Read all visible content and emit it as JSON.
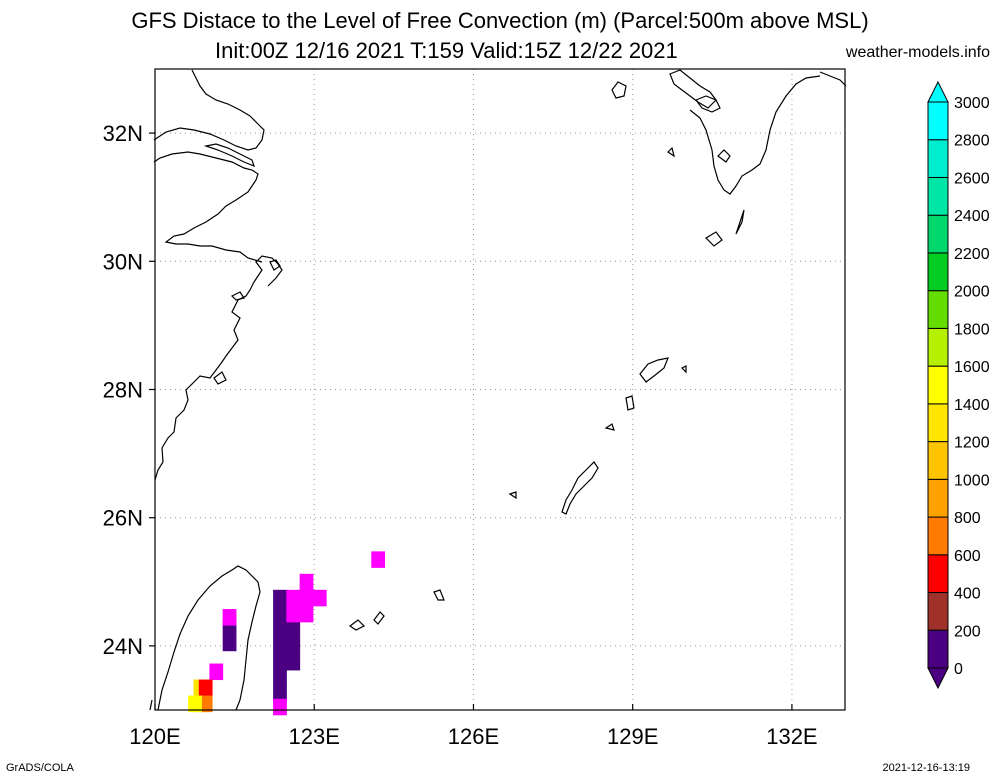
{
  "title": {
    "line1": "GFS Distace to the Level of Free Convection (m) (Parcel:500m above MSL)",
    "line2": "Init:00Z 12/16 2021 T:159 Valid:15Z 12/22 2021",
    "brand": "weather-models.info"
  },
  "footer": {
    "left": "GrADS/COLA",
    "right": "2021-12-16-13:19"
  },
  "map": {
    "lon_range": [
      120.0,
      133.0
    ],
    "lat_range": [
      23.0,
      33.0
    ],
    "lon_ticks": [
      {
        "value": 120,
        "label": "120E"
      },
      {
        "value": 123,
        "label": "123E"
      },
      {
        "value": 126,
        "label": "126E"
      },
      {
        "value": 129,
        "label": "129E"
      },
      {
        "value": 132,
        "label": "132E"
      }
    ],
    "lat_ticks": [
      {
        "value": 24,
        "label": "24N"
      },
      {
        "value": 26,
        "label": "26N"
      },
      {
        "value": 28,
        "label": "28N"
      },
      {
        "value": 30,
        "label": "30N"
      },
      {
        "value": 32,
        "label": "32N"
      }
    ],
    "grid": true
  },
  "colorbar": {
    "levels": [
      "0",
      "200",
      "400",
      "600",
      "800",
      "1000",
      "1200",
      "1400",
      "1600",
      "1800",
      "2000",
      "2200",
      "2400",
      "2600",
      "2800",
      "3000"
    ],
    "colors": [
      "#4b0082",
      "#ff00ff",
      "#a0302a",
      "#ff0000",
      "#ff7a00",
      "#ffa200",
      "#ffc400",
      "#ffe600",
      "#ffff00",
      "#b4f000",
      "#64dc00",
      "#00cc22",
      "#00d86e",
      "#00e6a6",
      "#00eed0",
      "#00ffff"
    ],
    "under_color": "#4b0082",
    "over_color": "#00ffff"
  },
  "field_cells": [
    {
      "lon": 122.35,
      "lat": 24.75,
      "value": 0
    },
    {
      "lon": 122.35,
      "lat": 24.5,
      "value": 0
    },
    {
      "lon": 122.35,
      "lat": 24.25,
      "value": 0
    },
    {
      "lon": 122.35,
      "lat": 24.0,
      "value": 0
    },
    {
      "lon": 122.35,
      "lat": 23.75,
      "value": 0
    },
    {
      "lon": 122.35,
      "lat": 23.5,
      "value": 0
    },
    {
      "lon": 122.35,
      "lat": 23.25,
      "value": 0
    },
    {
      "lon": 122.6,
      "lat": 24.25,
      "value": 0
    },
    {
      "lon": 122.6,
      "lat": 24.0,
      "value": 0
    },
    {
      "lon": 122.6,
      "lat": 23.75,
      "value": 0
    },
    {
      "lon": 122.6,
      "lat": 24.5,
      "value": 200
    },
    {
      "lon": 122.6,
      "lat": 24.75,
      "value": 200
    },
    {
      "lon": 122.85,
      "lat": 24.75,
      "value": 200
    },
    {
      "lon": 122.85,
      "lat": 25.0,
      "value": 200
    },
    {
      "lon": 122.85,
      "lat": 24.5,
      "value": 200
    },
    {
      "lon": 123.1,
      "lat": 24.75,
      "value": 200
    },
    {
      "lon": 122.35,
      "lat": 23.05,
      "value": 200
    },
    {
      "lon": 124.2,
      "lat": 25.35,
      "value": 200
    },
    {
      "lon": 121.4,
      "lat": 24.3,
      "value": 0
    },
    {
      "lon": 121.4,
      "lat": 24.05,
      "value": 0
    },
    {
      "lon": 121.4,
      "lat": 24.45,
      "value": 200
    },
    {
      "lon": 121.15,
      "lat": 23.6,
      "value": 200
    },
    {
      "lon": 120.85,
      "lat": 23.35,
      "value": 1400
    },
    {
      "lon": 120.85,
      "lat": 23.1,
      "value": 1200
    },
    {
      "lon": 120.95,
      "lat": 23.35,
      "value": 600
    },
    {
      "lon": 120.95,
      "lat": 23.1,
      "value": 800
    },
    {
      "lon": 120.75,
      "lat": 23.1,
      "value": 1600
    }
  ]
}
